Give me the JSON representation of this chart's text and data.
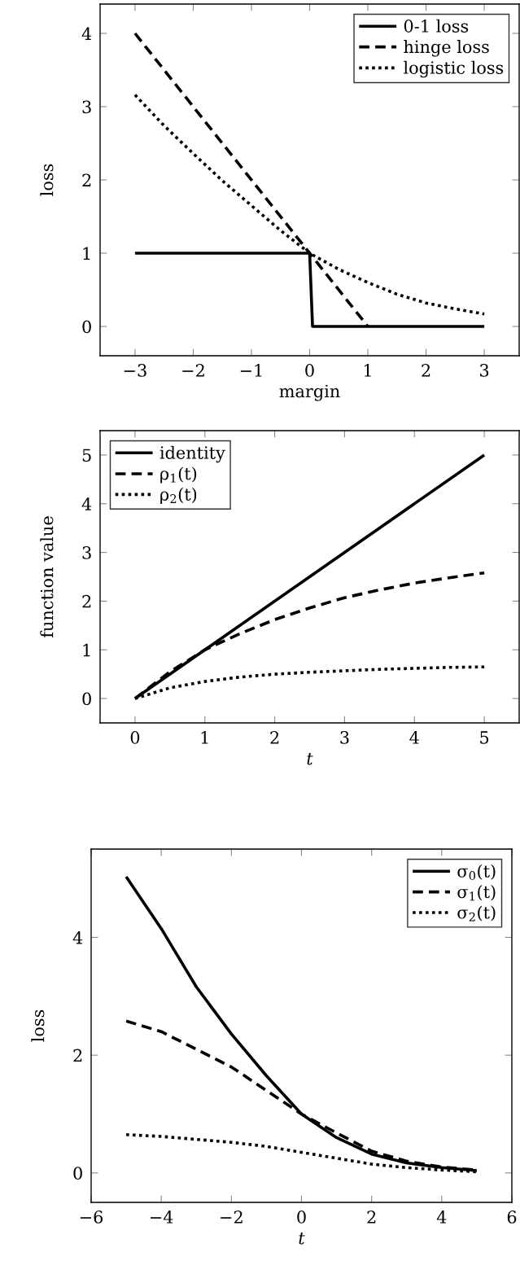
{
  "chart_data": [
    {
      "type": "line",
      "xlabel": "margin",
      "ylabel": "loss",
      "xlim": [
        -3.6,
        3.6
      ],
      "ylim": [
        -0.4,
        4.4
      ],
      "xticks": [
        -3,
        -2,
        -1,
        0,
        1,
        2,
        3
      ],
      "yticks": [
        0,
        1,
        2,
        3,
        4
      ],
      "grid": false,
      "legend": "top right",
      "series": [
        {
          "name": "0-1 loss",
          "color": "#000000",
          "line_style": "solid",
          "x": [
            -3,
            0,
            0.05,
            3
          ],
          "values": [
            1,
            1,
            0,
            0
          ]
        },
        {
          "name": "hinge loss",
          "color": "#000000",
          "line_style": "dashed",
          "x": [
            -3,
            1
          ],
          "values": [
            4,
            0
          ]
        },
        {
          "name": "logistic loss",
          "color": "#000000",
          "line_style": "dotted",
          "x": [
            -3,
            -2.5,
            -2,
            -1.5,
            -1,
            -0.5,
            0,
            0.5,
            1,
            1.5,
            2,
            2.5,
            3
          ],
          "values": [
            3.16,
            2.74,
            2.36,
            1.99,
            1.65,
            1.31,
            1.0,
            0.78,
            0.6,
            0.44,
            0.32,
            0.24,
            0.17
          ]
        }
      ]
    },
    {
      "type": "line",
      "xlabel": "t",
      "ylabel": "function value",
      "xlim": [
        -0.5,
        5.5
      ],
      "ylim": [
        -0.5,
        5.5
      ],
      "xticks": [
        0,
        1,
        2,
        3,
        4,
        5
      ],
      "yticks": [
        0,
        1,
        2,
        3,
        4,
        5
      ],
      "grid": false,
      "legend": "top left",
      "series": [
        {
          "name": "identity",
          "color": "#000000",
          "line_style": "solid",
          "x": [
            0,
            5
          ],
          "values": [
            0,
            5
          ]
        },
        {
          "name": "ρ$_{1}$(t)",
          "color": "#000000",
          "line_style": "dashed",
          "x": [
            0,
            0.5,
            1,
            1.5,
            2,
            2.5,
            3,
            3.5,
            4,
            4.5,
            5
          ],
          "values": [
            0,
            0.55,
            1.0,
            1.33,
            1.62,
            1.86,
            2.07,
            2.23,
            2.37,
            2.48,
            2.58
          ]
        },
        {
          "name": "ρ$_{2}$(t)",
          "color": "#000000",
          "line_style": "dotted",
          "x": [
            0,
            0.5,
            1,
            1.5,
            2,
            2.5,
            3,
            3.5,
            4,
            4.5,
            5
          ],
          "values": [
            0,
            0.22,
            0.35,
            0.44,
            0.5,
            0.54,
            0.57,
            0.6,
            0.62,
            0.64,
            0.65
          ]
        }
      ]
    },
    {
      "type": "line",
      "xlabel": "t",
      "ylabel": "loss",
      "xlim": [
        -6,
        6
      ],
      "ylim": [
        -0.5,
        5.5
      ],
      "xticks": [
        -6,
        -4,
        -2,
        0,
        2,
        4,
        6
      ],
      "yticks": [
        0,
        2,
        4
      ],
      "grid": false,
      "legend": "top right",
      "series": [
        {
          "name": "σ$_{0}$(t)",
          "color": "#000000",
          "line_style": "solid",
          "x": [
            -5,
            -4,
            -3,
            -2,
            -1,
            0,
            1,
            2,
            3,
            4,
            5
          ],
          "values": [
            5.03,
            4.15,
            3.16,
            2.36,
            1.65,
            1.0,
            0.6,
            0.32,
            0.17,
            0.09,
            0.04
          ]
        },
        {
          "name": "σ$_{1}$(t)",
          "color": "#000000",
          "line_style": "dashed",
          "x": [
            -5,
            -4,
            -3,
            -2,
            -1,
            0,
            1,
            2,
            3,
            4,
            5
          ],
          "values": [
            2.58,
            2.4,
            2.1,
            1.8,
            1.4,
            1.0,
            0.68,
            0.37,
            0.2,
            0.1,
            0.05
          ]
        },
        {
          "name": "σ$_{2}$(t)",
          "color": "#000000",
          "line_style": "dotted",
          "x": [
            -5,
            -4,
            -3,
            -2,
            -1,
            0,
            1,
            2,
            3,
            4,
            5
          ],
          "values": [
            0.65,
            0.62,
            0.57,
            0.52,
            0.45,
            0.35,
            0.25,
            0.15,
            0.09,
            0.05,
            0.02
          ]
        }
      ]
    }
  ]
}
